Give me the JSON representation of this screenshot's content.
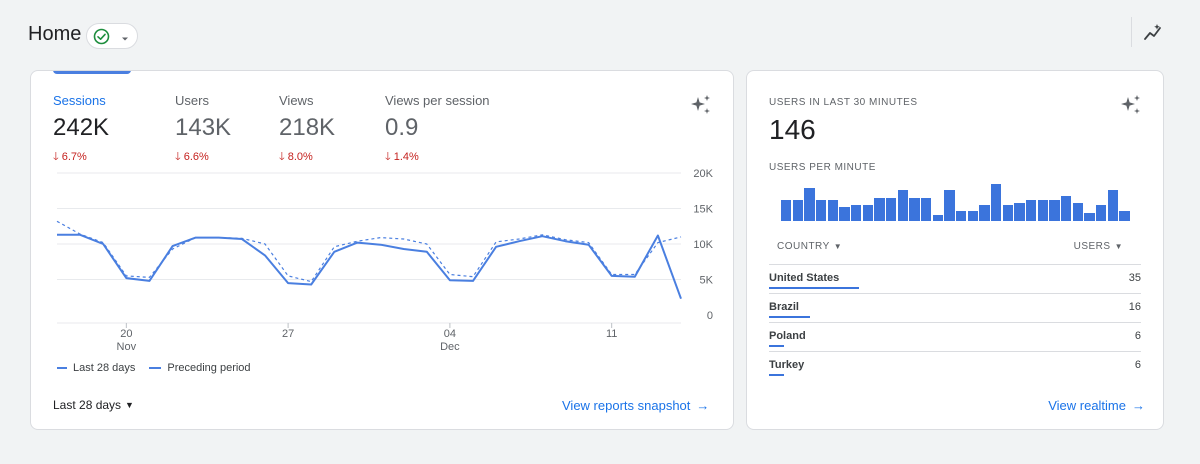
{
  "header": {
    "title": "Home",
    "status_icon": "check-circle-icon",
    "insights_icon": "insights-trend-icon"
  },
  "overview": {
    "metrics": [
      {
        "label": "Sessions",
        "value": "242K",
        "change": "6.7%",
        "direction": "down"
      },
      {
        "label": "Users",
        "value": "143K",
        "change": "6.6%",
        "direction": "down"
      },
      {
        "label": "Views",
        "value": "218K",
        "change": "8.0%",
        "direction": "down"
      },
      {
        "label": "Views per session",
        "value": "0.9",
        "change": "1.4%",
        "direction": "down"
      }
    ],
    "legend": {
      "current": "Last 28 days",
      "previous": "Preceding period"
    },
    "date_range": "Last 28 days",
    "link": "View reports snapshot"
  },
  "chart_data": {
    "type": "line",
    "y_axis": {
      "ticks": [
        "20K",
        "15K",
        "10K",
        "5K",
        "0"
      ],
      "ylim": [
        0,
        20000
      ]
    },
    "x_axis": {
      "ticks": [
        {
          "index": 3,
          "label": "20",
          "sublabel": "Nov"
        },
        {
          "index": 10,
          "label": "27",
          "sublabel": ""
        },
        {
          "index": 17,
          "label": "04",
          "sublabel": "Dec"
        },
        {
          "index": 24,
          "label": "11",
          "sublabel": ""
        }
      ]
    },
    "series": [
      {
        "name": "Last 28 days",
        "style": "solid",
        "values": [
          11300,
          11300,
          10000,
          5200,
          4800,
          9700,
          10900,
          10900,
          10700,
          8400,
          4500,
          4300,
          8900,
          10200,
          9900,
          9300,
          8900,
          4900,
          4800,
          9600,
          10400,
          11100,
          10400,
          9900,
          5500,
          5400,
          11200,
          2300
        ]
      },
      {
        "name": "Preceding period",
        "style": "dashed",
        "values": [
          13200,
          11400,
          10200,
          5500,
          5300,
          9300,
          10900,
          10900,
          10800,
          10000,
          5500,
          4700,
          9600,
          10400,
          10900,
          10700,
          10000,
          5700,
          5400,
          10300,
          10700,
          11300,
          10600,
          10200,
          5700,
          5700,
          10200,
          11000
        ]
      }
    ],
    "grid": true,
    "legend_position": "bottom-left"
  },
  "realtime": {
    "title": "USERS IN LAST 30 MINUTES",
    "value": "146",
    "per_minute_title": "USERS PER MINUTE",
    "per_minute": [
      5,
      5,
      8,
      5,
      5,
      3.5,
      4,
      4,
      5.5,
      5.5,
      7.5,
      5.5,
      5.5,
      1.5,
      7.5,
      2.5,
      2.5,
      4,
      9,
      4,
      4.5,
      5,
      5,
      5,
      6,
      4.5,
      2,
      4,
      7.5,
      2.5
    ],
    "table": {
      "col_country": "COUNTRY",
      "col_users": "USERS",
      "rows": [
        {
          "country": "United States",
          "users": "35",
          "share": 1.0
        },
        {
          "country": "Brazil",
          "users": "16",
          "share": 0.46
        },
        {
          "country": "Poland",
          "users": "6",
          "share": 0.17
        },
        {
          "country": "Turkey",
          "users": "6",
          "share": 0.17
        }
      ]
    },
    "link": "View realtime"
  }
}
